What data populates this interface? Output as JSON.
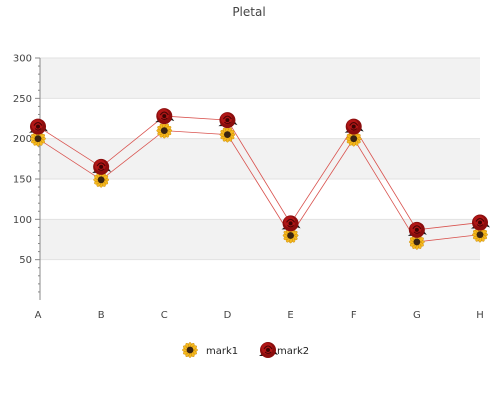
{
  "chart_data": {
    "type": "line",
    "title": "Pletal",
    "xlabel": "",
    "ylabel": "",
    "categories": [
      "A",
      "B",
      "C",
      "D",
      "E",
      "F",
      "G",
      "H"
    ],
    "ylim": [
      0,
      300
    ],
    "yticks": [
      50,
      100,
      150,
      200,
      250,
      300
    ],
    "grid": "horizontal bands",
    "legend": "bottom-center",
    "series": [
      {
        "name": "mark1",
        "values": [
          200,
          149,
          210,
          205,
          80,
          200,
          72,
          81
        ],
        "color": "#d9534f",
        "marker": "sunflower-icon"
      },
      {
        "name": "mark2",
        "values": [
          215,
          165,
          228,
          223,
          95,
          215,
          87,
          96
        ],
        "color": "#d9534f",
        "marker": "rose-icon"
      }
    ]
  }
}
